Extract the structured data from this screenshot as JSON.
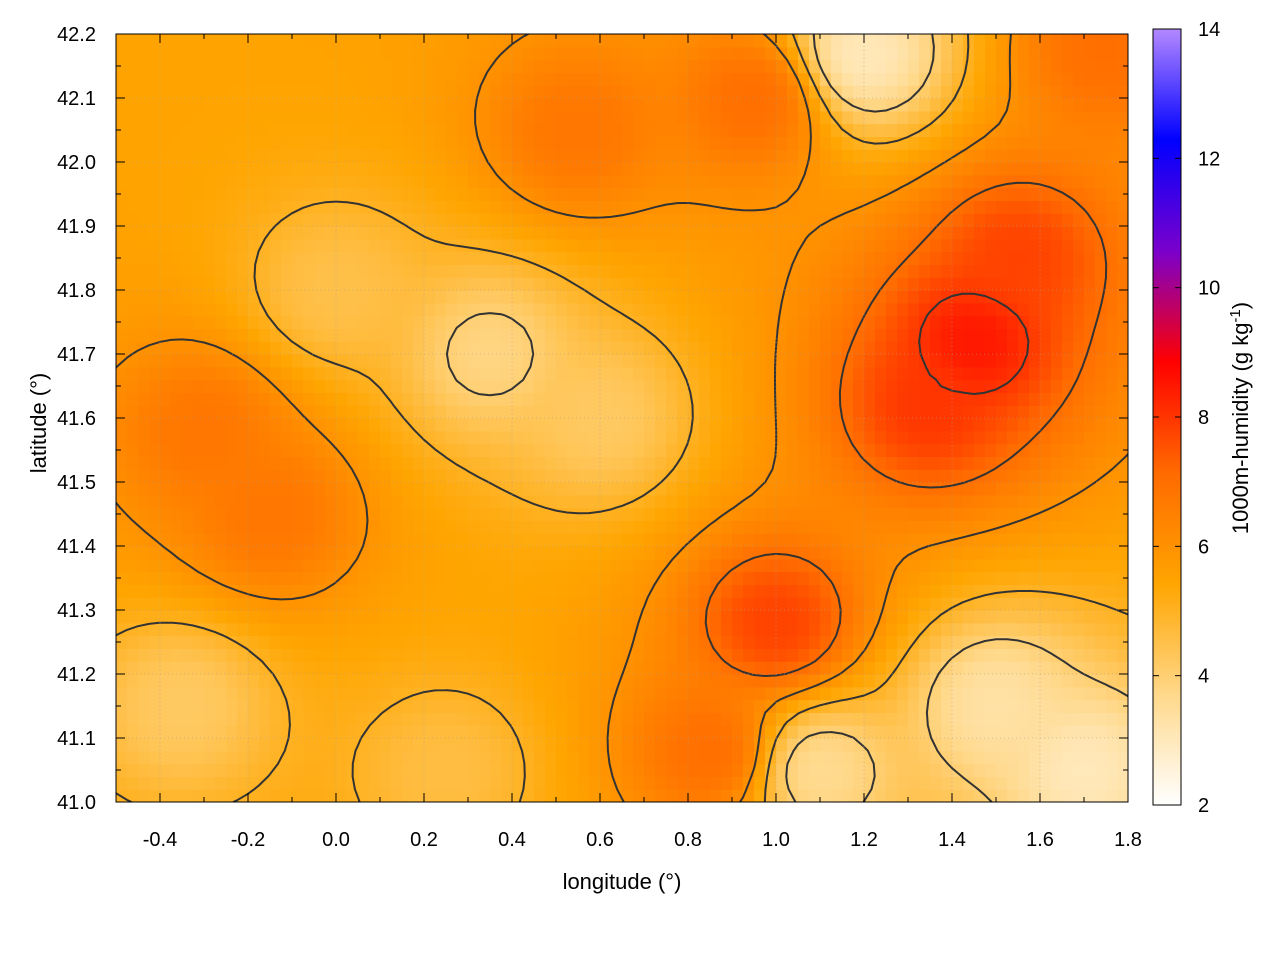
{
  "chart_data": {
    "type": "heatmap",
    "title": "",
    "xlabel": "longitude (°)",
    "ylabel": "latitude (°)",
    "xlim": [
      -0.5,
      1.8
    ],
    "ylim": [
      41.0,
      42.2
    ],
    "xticks": [
      "-0.4",
      "-0.2",
      "0.0",
      "0.2",
      "0.4",
      "0.6",
      "0.8",
      "1.0",
      "1.2",
      "1.4",
      "1.6",
      "1.8"
    ],
    "yticks": [
      "41.0",
      "41.1",
      "41.2",
      "41.3",
      "41.4",
      "41.5",
      "41.6",
      "41.7",
      "41.8",
      "41.9",
      "42.0",
      "42.1",
      "42.2"
    ],
    "grid": true,
    "colorbar": {
      "label_main": "1000m-humidity (g kg",
      "label_sup": "-1",
      "label_end": ")",
      "range": [
        2,
        14
      ],
      "ticks": [
        "2",
        "4",
        "6",
        "8",
        "10",
        "12",
        "14"
      ],
      "colors": [
        "#ffffff",
        "#ffd88a",
        "#ffa500",
        "#ff6a00",
        "#ff0000",
        "#7a00cc",
        "#0000ff",
        "#b388ff"
      ]
    },
    "field_features": [
      {
        "lon": 1.45,
        "lat": 41.72,
        "value": 8.5
      },
      {
        "lon": 1.35,
        "lat": 41.62,
        "value": 8.0
      },
      {
        "lon": 1.55,
        "lat": 41.85,
        "value": 7.8
      },
      {
        "lon": 1.0,
        "lat": 41.28,
        "value": 7.8
      },
      {
        "lon": 0.85,
        "lat": 41.08,
        "value": 7.0
      },
      {
        "lon": -0.3,
        "lat": 41.58,
        "value": 6.8
      },
      {
        "lon": -0.15,
        "lat": 41.45,
        "value": 6.8
      },
      {
        "lon": 0.55,
        "lat": 42.05,
        "value": 6.8
      },
      {
        "lon": 0.95,
        "lat": 42.1,
        "value": 7.0
      },
      {
        "lon": 1.75,
        "lat": 42.18,
        "value": 7.0
      },
      {
        "lon": 0.35,
        "lat": 41.7,
        "value": 3.8
      },
      {
        "lon": 0.6,
        "lat": 41.6,
        "value": 4.2
      },
      {
        "lon": 0.0,
        "lat": 41.8,
        "value": 4.5
      },
      {
        "lon": 1.5,
        "lat": 41.15,
        "value": 3.3
      },
      {
        "lon": 1.7,
        "lat": 41.05,
        "value": 3.0
      },
      {
        "lon": 1.1,
        "lat": 41.05,
        "value": 3.6
      },
      {
        "lon": 1.2,
        "lat": 42.17,
        "value": 3.0
      },
      {
        "lon": -0.35,
        "lat": 41.15,
        "value": 4.2
      },
      {
        "lon": 0.25,
        "lat": 41.05,
        "value": 4.6
      }
    ],
    "background_value": 5.5,
    "contour_levels": [
      4,
      5,
      6,
      7,
      8
    ]
  }
}
